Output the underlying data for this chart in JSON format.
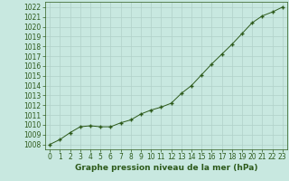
{
  "x": [
    0,
    1,
    2,
    3,
    4,
    5,
    6,
    7,
    8,
    9,
    10,
    11,
    12,
    13,
    14,
    15,
    16,
    17,
    18,
    19,
    20,
    21,
    22,
    23
  ],
  "y": [
    1008.0,
    1008.5,
    1009.2,
    1009.8,
    1009.9,
    1009.8,
    1009.8,
    1010.2,
    1010.5,
    1011.1,
    1011.5,
    1011.8,
    1012.2,
    1013.2,
    1014.0,
    1015.1,
    1016.2,
    1017.2,
    1018.2,
    1019.3,
    1020.4,
    1021.1,
    1021.5,
    1022.0
  ],
  "xlim": [
    -0.5,
    23.5
  ],
  "ylim": [
    1007.5,
    1022.5
  ],
  "yticks": [
    1008,
    1009,
    1010,
    1011,
    1012,
    1013,
    1014,
    1015,
    1016,
    1017,
    1018,
    1019,
    1020,
    1021,
    1022
  ],
  "xticks": [
    0,
    1,
    2,
    3,
    4,
    5,
    6,
    7,
    8,
    9,
    10,
    11,
    12,
    13,
    14,
    15,
    16,
    17,
    18,
    19,
    20,
    21,
    22,
    23
  ],
  "line_color": "#2d5a1b",
  "marker_color": "#2d5a1b",
  "bg_color": "#c8e8e0",
  "grid_color": "#b0d0c8",
  "xlabel": "Graphe pression niveau de la mer (hPa)",
  "xlabel_fontsize": 6.5,
  "tick_fontsize": 5.5,
  "line_width": 0.7,
  "marker_size": 3.5,
  "marker_style": "+"
}
